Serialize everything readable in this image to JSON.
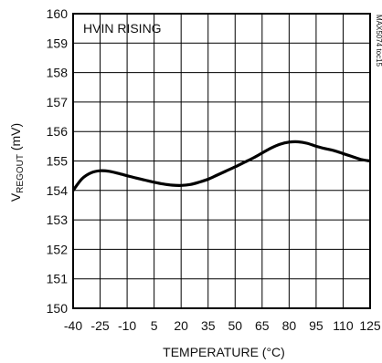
{
  "chart_data": {
    "type": "line",
    "xlabel": "TEMPERATURE (°C)",
    "ylabel_main": "V",
    "ylabel_sub": "REGOUT",
    "ylabel_unit": " (mV)",
    "annotation": "HVIN RISING",
    "side_id": "MAX5074 toc15",
    "xlim": [
      -40,
      125
    ],
    "ylim": [
      150,
      160
    ],
    "xticks": [
      -40,
      -25,
      -10,
      5,
      20,
      35,
      50,
      65,
      80,
      95,
      110,
      125
    ],
    "xtick_labels": [
      "-40",
      "-25",
      "-10",
      "5",
      "20",
      "35",
      "50",
      "65",
      "80",
      "95",
      "110",
      "125"
    ],
    "yticks": [
      150,
      151,
      152,
      153,
      154,
      155,
      156,
      157,
      158,
      159,
      160
    ],
    "ytick_labels": [
      "150",
      "151",
      "152",
      "153",
      "154",
      "155",
      "156",
      "157",
      "158",
      "159",
      "160"
    ],
    "grid": true,
    "series": [
      {
        "color": "#000000",
        "x": [
          -40,
          -35,
          -30,
          -25,
          -20,
          -15,
          -10,
          -5,
          0,
          5,
          10,
          15,
          20,
          25,
          30,
          35,
          40,
          45,
          50,
          55,
          60,
          65,
          70,
          75,
          80,
          85,
          90,
          95,
          100,
          105,
          110,
          115,
          120,
          125
        ],
        "y": [
          154.0,
          154.4,
          154.6,
          154.67,
          154.65,
          154.58,
          154.5,
          154.42,
          154.35,
          154.28,
          154.22,
          154.18,
          154.17,
          154.2,
          154.28,
          154.38,
          154.52,
          154.66,
          154.8,
          154.95,
          155.1,
          155.27,
          155.44,
          155.57,
          155.64,
          155.65,
          155.6,
          155.5,
          155.42,
          155.35,
          155.25,
          155.15,
          155.05,
          155.0
        ]
      }
    ]
  }
}
